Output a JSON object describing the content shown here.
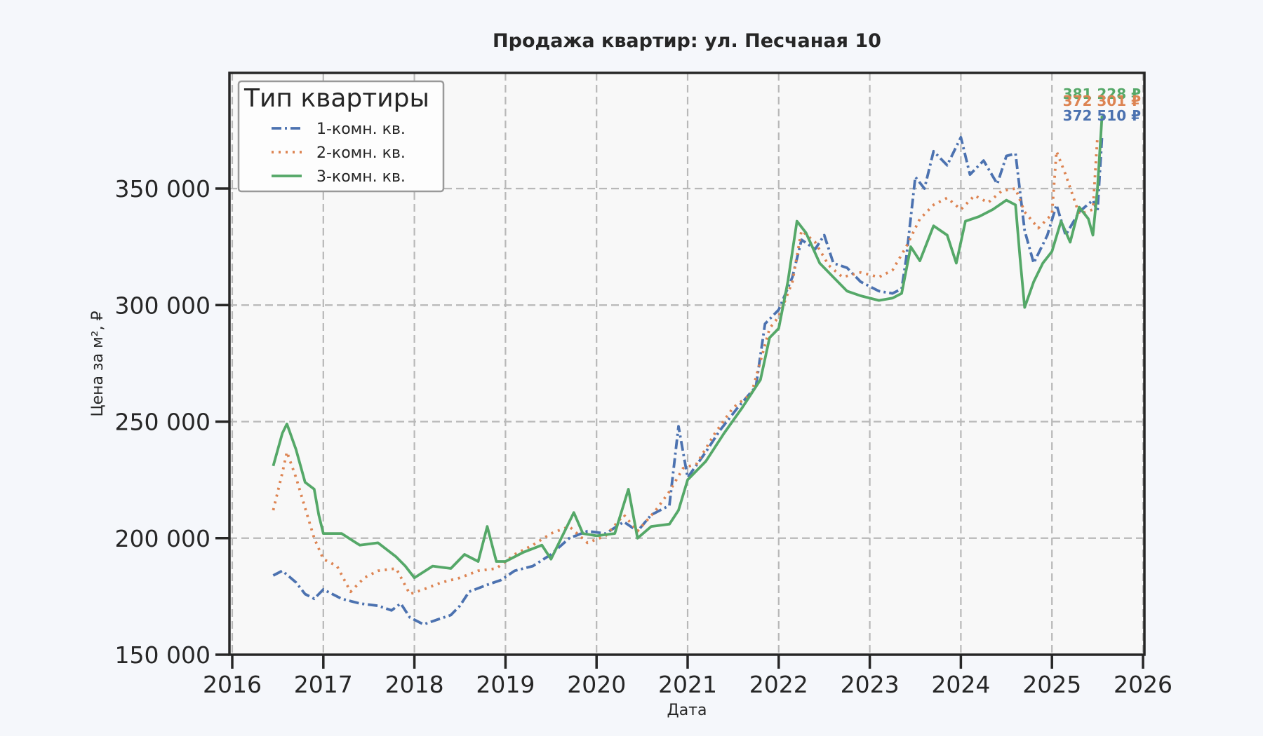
{
  "chart_data": {
    "type": "line",
    "title": "Продажа квартир: ул. Песчаная 10",
    "xlabel": "Дата",
    "ylabel": "Цена за м², ₽",
    "xlim": [
      2016,
      2026
    ],
    "ylim": [
      150000,
      400000
    ],
    "x_ticks": [
      "2016",
      "2017",
      "2018",
      "2019",
      "2020",
      "2021",
      "2022",
      "2023",
      "2024",
      "2025",
      "2026"
    ],
    "y_ticks": [
      {
        "value": 150000,
        "label": "150 000"
      },
      {
        "value": 200000,
        "label": "200 000"
      },
      {
        "value": 250000,
        "label": "250 000"
      },
      {
        "value": 300000,
        "label": "300 000"
      },
      {
        "value": 350000,
        "label": "350 000"
      }
    ],
    "grid": true,
    "legend": {
      "title": "Тип квартиры",
      "position": "upper left"
    },
    "series": [
      {
        "name": "1-комн. кв.",
        "color": "#4c72b0",
        "style": "dashdot",
        "x": [
          2016.45,
          2016.55,
          2016.7,
          2016.8,
          2016.9,
          2017.0,
          2017.2,
          2017.4,
          2017.6,
          2017.75,
          2017.85,
          2017.95,
          2018.1,
          2018.25,
          2018.4,
          2018.5,
          2018.6,
          2018.8,
          2018.95,
          2019.1,
          2019.3,
          2019.5,
          2019.7,
          2019.9,
          2020.1,
          2020.3,
          2020.45,
          2020.6,
          2020.8,
          2020.9,
          2021.0,
          2021.2,
          2021.35,
          2021.55,
          2021.75,
          2021.85,
          2022.0,
          2022.15,
          2022.25,
          2022.4,
          2022.5,
          2022.6,
          2022.75,
          2022.9,
          2023.1,
          2023.25,
          2023.35,
          2023.4,
          2023.5,
          2023.6,
          2023.7,
          2023.85,
          2024.0,
          2024.1,
          2024.25,
          2024.4,
          2024.5,
          2024.6,
          2024.7,
          2024.8,
          2024.95,
          2025.05,
          2025.15,
          2025.3,
          2025.45,
          2025.5,
          2025.55
        ],
        "values": [
          184000,
          186000,
          181000,
          176000,
          174000,
          178000,
          174000,
          172000,
          171000,
          169000,
          172000,
          166000,
          163000,
          165000,
          167000,
          171000,
          177000,
          180000,
          182000,
          186000,
          188000,
          193000,
          200000,
          203000,
          202000,
          207000,
          203000,
          210000,
          214000,
          248000,
          226000,
          237000,
          246000,
          256000,
          265000,
          292000,
          298000,
          312000,
          328000,
          324000,
          330000,
          318000,
          316000,
          310000,
          306000,
          305000,
          307000,
          320000,
          355000,
          350000,
          366000,
          360000,
          372000,
          356000,
          362000,
          352000,
          364000,
          365000,
          332000,
          318000,
          330000,
          343000,
          330000,
          340000,
          345000,
          340000,
          372510
        ]
      },
      {
        "name": "2-комн. кв.",
        "color": "#dd8452",
        "style": "dotted",
        "x": [
          2016.45,
          2016.55,
          2016.6,
          2016.7,
          2016.8,
          2016.9,
          2017.0,
          2017.15,
          2017.3,
          2017.45,
          2017.6,
          2017.8,
          2017.95,
          2018.1,
          2018.3,
          2018.5,
          2018.7,
          2018.9,
          2019.1,
          2019.3,
          2019.5,
          2019.7,
          2019.9,
          2020.1,
          2020.3,
          2020.45,
          2020.65,
          2020.8,
          2020.95,
          2021.1,
          2021.3,
          2021.5,
          2021.7,
          2021.9,
          2022.0,
          2022.15,
          2022.25,
          2022.4,
          2022.55,
          2022.7,
          2022.9,
          2023.1,
          2023.25,
          2023.4,
          2023.55,
          2023.7,
          2023.85,
          2024.0,
          2024.15,
          2024.3,
          2024.45,
          2024.6,
          2024.7,
          2024.85,
          2025.0,
          2025.05,
          2025.15,
          2025.3,
          2025.45,
          2025.5
        ],
        "values": [
          212000,
          228000,
          237000,
          226000,
          213000,
          200000,
          191000,
          188000,
          177000,
          183000,
          186000,
          187000,
          176000,
          178000,
          181000,
          183000,
          186000,
          187000,
          193000,
          197000,
          202000,
          205000,
          198000,
          201000,
          210000,
          203000,
          212000,
          220000,
          230000,
          232000,
          245000,
          256000,
          262000,
          290000,
          295000,
          310000,
          332000,
          327000,
          317000,
          312000,
          314000,
          312000,
          315000,
          325000,
          337000,
          343000,
          346000,
          341000,
          347000,
          344000,
          349000,
          350000,
          340000,
          333000,
          339000,
          366000,
          356000,
          339000,
          341000,
          372301
        ]
      },
      {
        "name": "3-комн. кв.",
        "color": "#55a868",
        "style": "solid",
        "x": [
          2016.45,
          2016.55,
          2016.6,
          2016.7,
          2016.8,
          2016.9,
          2016.95,
          2017.0,
          2017.2,
          2017.4,
          2017.6,
          2017.8,
          2017.9,
          2018.0,
          2018.2,
          2018.4,
          2018.55,
          2018.7,
          2018.8,
          2018.9,
          2019.0,
          2019.2,
          2019.4,
          2019.5,
          2019.6,
          2019.75,
          2019.85,
          2020.0,
          2020.2,
          2020.35,
          2020.45,
          2020.6,
          2020.8,
          2020.9,
          2021.0,
          2021.2,
          2021.4,
          2021.6,
          2021.8,
          2021.9,
          2022.0,
          2022.1,
          2022.2,
          2022.3,
          2022.45,
          2022.6,
          2022.75,
          2022.9,
          2023.1,
          2023.25,
          2023.35,
          2023.45,
          2023.55,
          2023.7,
          2023.85,
          2023.95,
          2024.05,
          2024.2,
          2024.35,
          2024.5,
          2024.6,
          2024.65,
          2024.7,
          2024.8,
          2024.9,
          2025.0,
          2025.1,
          2025.2,
          2025.3,
          2025.4,
          2025.45,
          2025.5,
          2025.55
        ],
        "values": [
          231000,
          245000,
          249000,
          238000,
          224000,
          221000,
          210000,
          202000,
          202000,
          197000,
          198000,
          192000,
          188000,
          183000,
          188000,
          187000,
          193000,
          190000,
          205000,
          190000,
          190000,
          194000,
          197000,
          191000,
          199000,
          211000,
          202000,
          201000,
          202000,
          221000,
          200000,
          205000,
          206000,
          212000,
          225000,
          233000,
          245000,
          256000,
          268000,
          286000,
          290000,
          310000,
          336000,
          331000,
          318000,
          312000,
          306000,
          304000,
          302000,
          303000,
          305000,
          325000,
          319000,
          334000,
          330000,
          318000,
          336000,
          338000,
          341000,
          345000,
          343000,
          320000,
          299000,
          310000,
          318000,
          323000,
          336000,
          327000,
          342000,
          337000,
          330000,
          350000,
          381228
        ]
      }
    ],
    "annotations": [
      {
        "text": "381 228 ₽",
        "series": "3-комн. кв.",
        "color": "#55a868"
      },
      {
        "text": "372 301 ₽",
        "series": "2-комн. кв.",
        "color": "#dd8452"
      },
      {
        "text": "372 510 ₽",
        "series": "1-комн. кв.",
        "color": "#4c72b0"
      }
    ]
  },
  "colors": {
    "background": "#f5f7fb",
    "plot_background": "#f8f8f8",
    "spine": "#262626",
    "grid": "#b8b8b8",
    "text": "#262626"
  }
}
